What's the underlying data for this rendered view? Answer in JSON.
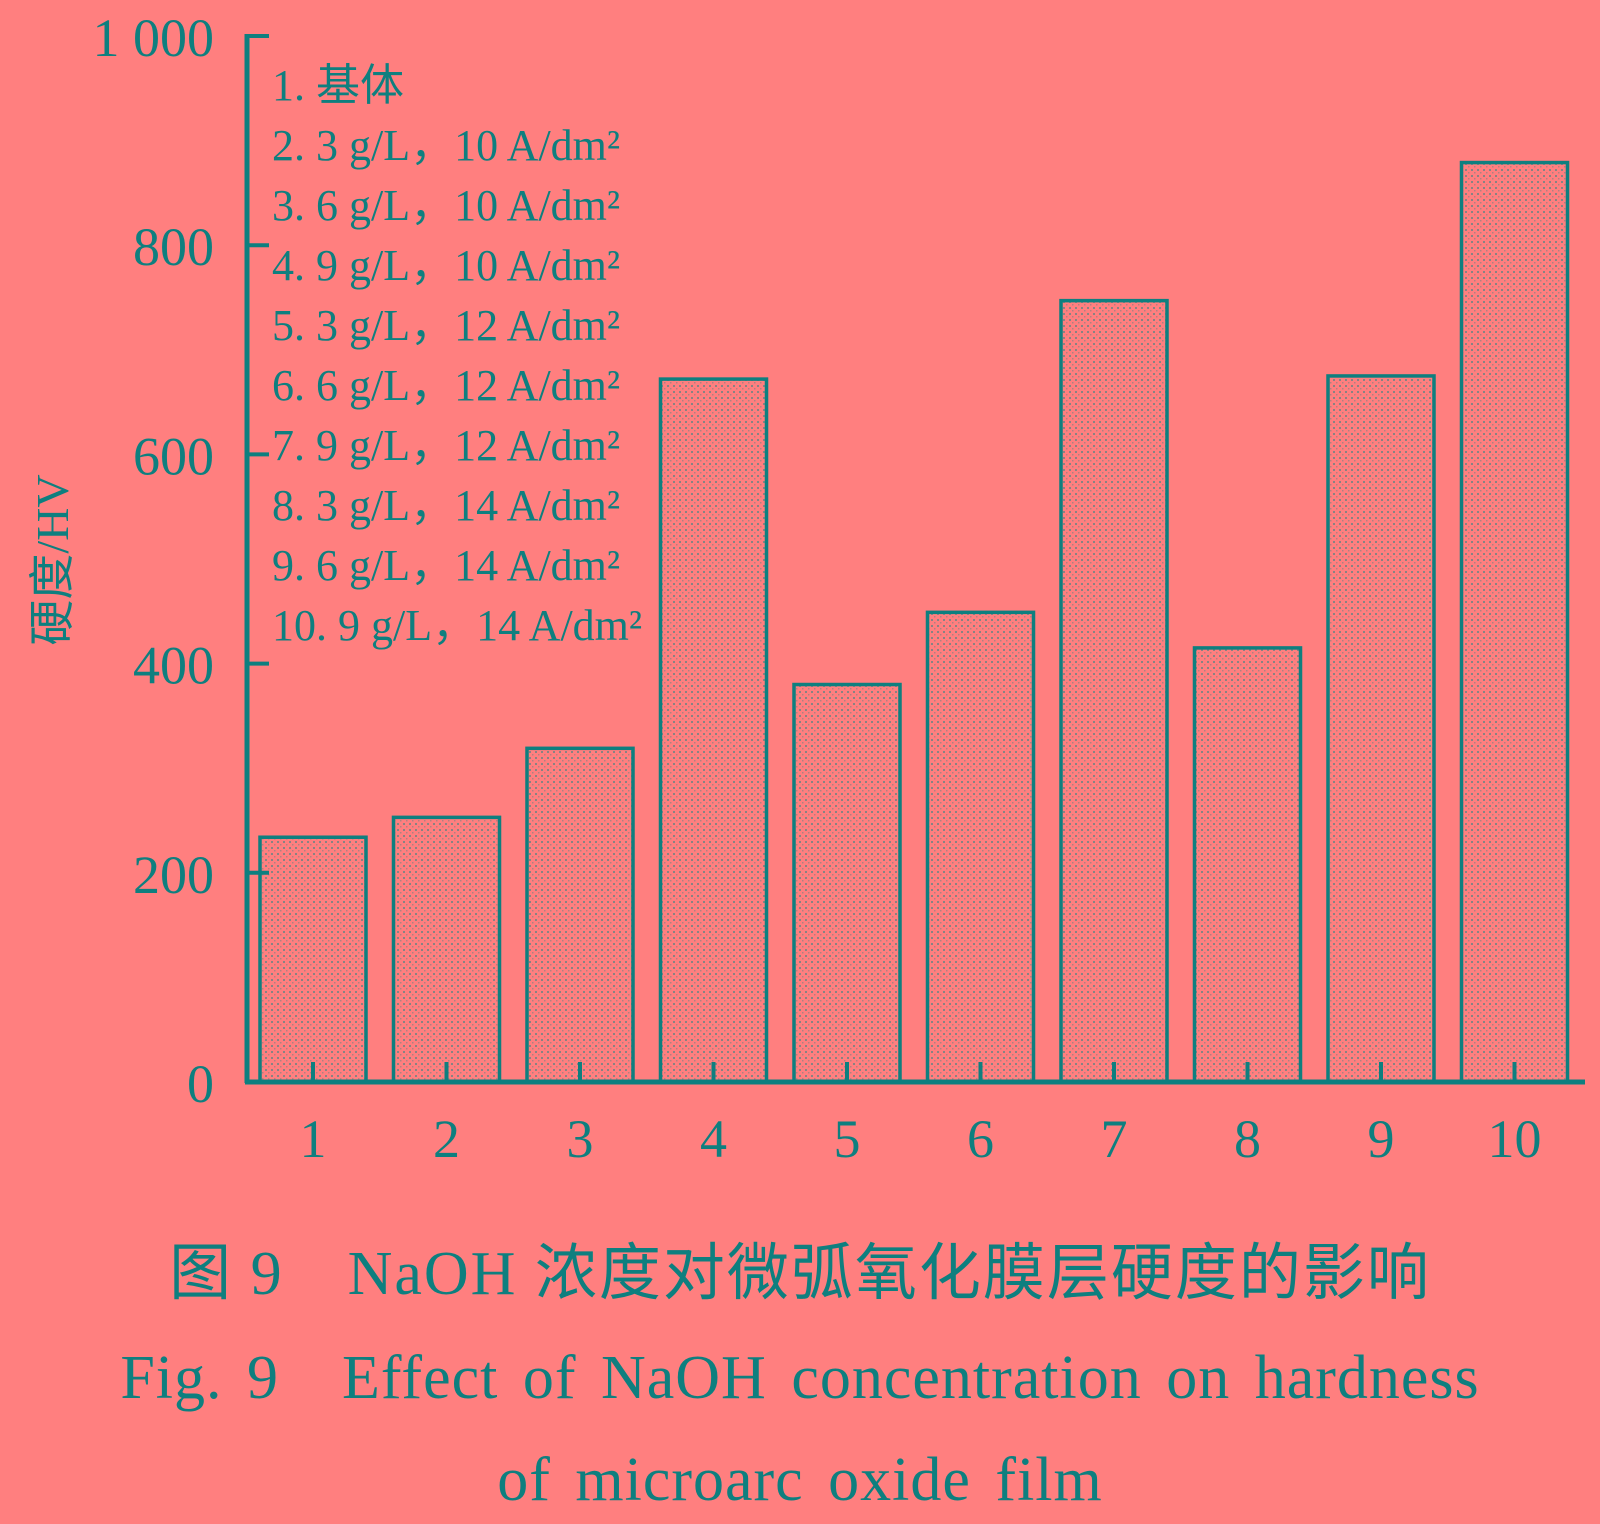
{
  "colors": {
    "background": "#ff7f7f",
    "foreground": "#0e7f7f"
  },
  "chart_data": {
    "type": "bar",
    "categories": [
      "1",
      "2",
      "3",
      "4",
      "5",
      "6",
      "7",
      "8",
      "9",
      "10"
    ],
    "values": [
      234,
      253,
      319,
      672,
      380,
      449,
      747,
      415,
      675,
      879
    ],
    "ylabel": "硬度/HV",
    "xlabel": "",
    "ylim": [
      0,
      1000
    ],
    "yticks": [
      0,
      200,
      400,
      600,
      800,
      1000
    ],
    "ytick_labels": [
      "0",
      "200",
      "400",
      "600",
      "800",
      "1 000"
    ],
    "legend_placement": "top-left",
    "legend": [
      "1. 基体",
      "2. 3 g/L，10 A/dm²",
      "3. 6 g/L，10 A/dm²",
      "4. 9 g/L，10 A/dm²",
      "5. 3 g/L，12 A/dm²",
      "6. 6 g/L，12 A/dm²",
      "7. 9 g/L，12 A/dm²",
      "8. 3 g/L，14 A/dm²",
      "9. 6 g/L，14 A/dm²",
      "10. 9 g/L，14 A/dm²"
    ],
    "bar_fill": "dotted pattern"
  },
  "caption": {
    "cn": "图 9　NaOH 浓度对微弧氧化膜层硬度的影响",
    "en_line1": "Fig. 9　Effect of NaOH concentration on hardness",
    "en_line2": "of microarc oxide film"
  }
}
